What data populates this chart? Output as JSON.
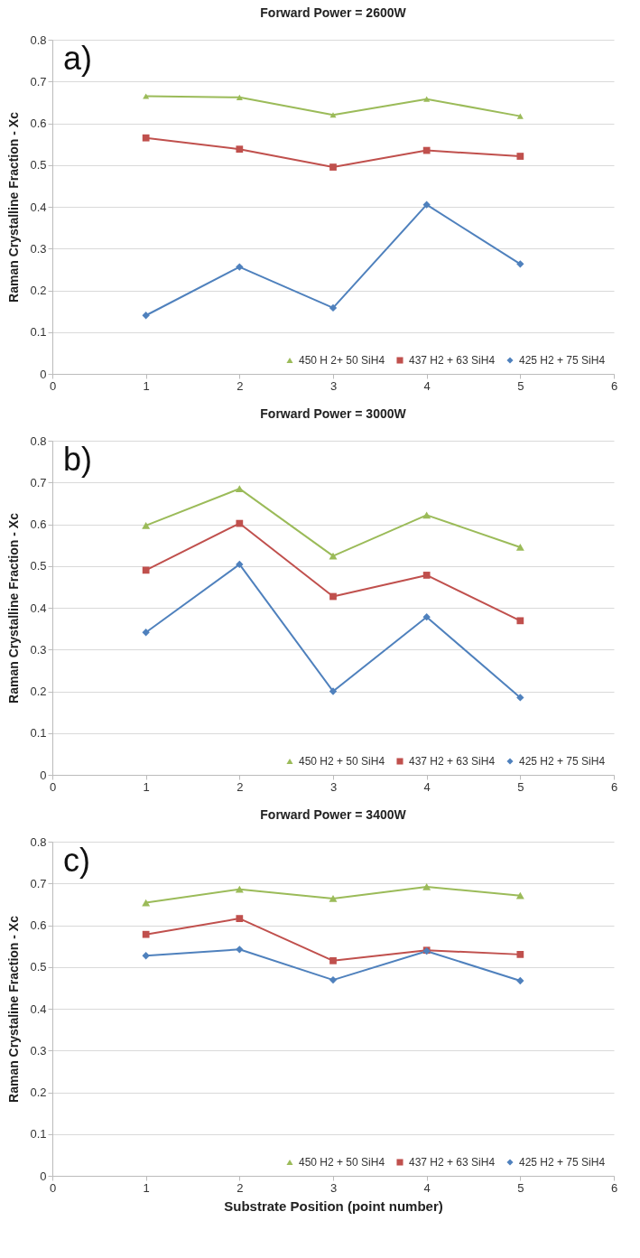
{
  "chart_data": [
    {
      "type": "line",
      "title": "Forward Power = 2600W",
      "ylabel": "Raman Crystalline Fraction - Xc",
      "annotations": [
        "a)"
      ],
      "x": [
        1,
        2,
        3,
        4,
        5
      ],
      "xlim": [
        0,
        6
      ],
      "xticks": [
        0,
        1,
        2,
        3,
        4,
        5,
        6
      ],
      "ylim": [
        0,
        0.8
      ],
      "yticks": [
        0,
        0.1,
        0.2,
        0.3,
        0.4,
        0.5,
        0.6,
        0.7,
        0.8
      ],
      "grid": "y",
      "legend": "bottom right",
      "series": [
        {
          "name": "450 H 2+ 50 SiH4",
          "color": "#9bbb59",
          "marker": "triangle",
          "values": [
            0.665,
            0.662,
            0.62,
            0.658,
            0.617
          ]
        },
        {
          "name": "437 H2 + 63 SiH4",
          "color": "#c0504d",
          "marker": "square",
          "values": [
            0.565,
            0.538,
            0.495,
            0.535,
            0.521
          ]
        },
        {
          "name": "425 H2 + 75 SiH4",
          "color": "#4f81bd",
          "marker": "diamond",
          "values": [
            0.14,
            0.256,
            0.158,
            0.405,
            0.263
          ]
        }
      ]
    },
    {
      "type": "line",
      "title": "Forward Power = 3000W",
      "ylabel": "Raman Crystalline Fraction - Xc",
      "annotations": [
        "b)"
      ],
      "x": [
        1,
        2,
        3,
        4,
        5
      ],
      "xlim": [
        0,
        6
      ],
      "xticks": [
        0,
        1,
        2,
        3,
        4,
        5,
        6
      ],
      "ylim": [
        0,
        0.8
      ],
      "yticks": [
        0,
        0.1,
        0.2,
        0.3,
        0.4,
        0.5,
        0.6,
        0.7,
        0.8
      ],
      "grid": "y",
      "legend": "bottom right",
      "series": [
        {
          "name": "450 H2 + 50 SiH4",
          "color": "#9bbb59",
          "marker": "triangle",
          "values": [
            0.597,
            0.685,
            0.524,
            0.622,
            0.545
          ]
        },
        {
          "name": "437 H2 + 63 SiH4",
          "color": "#c0504d",
          "marker": "square",
          "values": [
            0.49,
            0.602,
            0.427,
            0.478,
            0.369
          ]
        },
        {
          "name": "425 H2 + 75 SiH4",
          "color": "#4f81bd",
          "marker": "diamond",
          "values": [
            0.341,
            0.504,
            0.2,
            0.378,
            0.185
          ]
        }
      ]
    },
    {
      "type": "line",
      "title": "Forward Power = 3400W",
      "xlabel": "Substrate Position (point number)",
      "ylabel": "Raman Crystaline Fraction - Xc",
      "annotations": [
        "c)"
      ],
      "x": [
        1,
        2,
        3,
        4,
        5
      ],
      "xlim": [
        0,
        6
      ],
      "xticks": [
        0,
        1,
        2,
        3,
        4,
        5,
        6
      ],
      "ylim": [
        0,
        0.8
      ],
      "yticks": [
        0,
        0.1,
        0.2,
        0.3,
        0.4,
        0.5,
        0.6,
        0.7,
        0.8
      ],
      "grid": "y",
      "legend": "bottom right",
      "series": [
        {
          "name": "450 H2 + 50 SiH4",
          "color": "#9bbb59",
          "marker": "triangle",
          "values": [
            0.654,
            0.686,
            0.664,
            0.692,
            0.671
          ]
        },
        {
          "name": "437 H2 + 63 SiH4",
          "color": "#c0504d",
          "marker": "square",
          "values": [
            0.578,
            0.616,
            0.515,
            0.54,
            0.53
          ]
        },
        {
          "name": "425 H2 + 75 SiH4",
          "color": "#4f81bd",
          "marker": "diamond",
          "values": [
            0.527,
            0.542,
            0.469,
            0.538,
            0.467
          ]
        }
      ]
    }
  ]
}
